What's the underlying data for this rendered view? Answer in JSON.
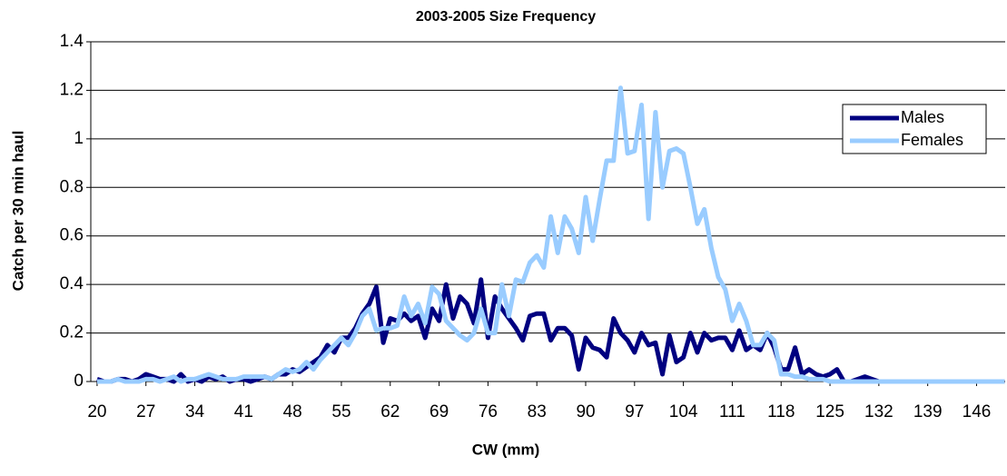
{
  "chart_data": {
    "type": "line",
    "title": "2003-2005 Size Frequency",
    "x_label": "CW (mm)",
    "y_label": "Catch per 30 min haul",
    "x": [
      20,
      21,
      22,
      23,
      24,
      25,
      26,
      27,
      28,
      29,
      30,
      31,
      32,
      33,
      34,
      35,
      36,
      37,
      38,
      39,
      40,
      41,
      42,
      43,
      44,
      45,
      46,
      47,
      48,
      49,
      50,
      51,
      52,
      53,
      54,
      55,
      56,
      57,
      58,
      59,
      60,
      61,
      62,
      63,
      64,
      65,
      66,
      67,
      68,
      69,
      70,
      71,
      72,
      73,
      74,
      75,
      76,
      77,
      78,
      79,
      80,
      81,
      82,
      83,
      84,
      85,
      86,
      87,
      88,
      89,
      90,
      91,
      92,
      93,
      94,
      95,
      96,
      97,
      98,
      99,
      100,
      101,
      102,
      103,
      104,
      105,
      106,
      107,
      108,
      109,
      110,
      111,
      112,
      113,
      114,
      115,
      116,
      117,
      118,
      119,
      120,
      121,
      122,
      123,
      124,
      125,
      126,
      127,
      128,
      129,
      130,
      131,
      132,
      133,
      134,
      135,
      136,
      137,
      138,
      139,
      140,
      141,
      142,
      143,
      144,
      145,
      146,
      147,
      148,
      149,
      150
    ],
    "series": [
      {
        "name": "Males",
        "color": "#000080",
        "values": [
          0.01,
          0,
          0,
          0.01,
          0.01,
          0,
          0.01,
          0.03,
          0.02,
          0.01,
          0.01,
          0,
          0.03,
          0,
          0.01,
          0,
          0.02,
          0.01,
          0.02,
          0,
          0.01,
          0.01,
          0,
          0.01,
          0.02,
          0.01,
          0.03,
          0.03,
          0.05,
          0.04,
          0.06,
          0.08,
          0.1,
          0.15,
          0.12,
          0.18,
          0.18,
          0.22,
          0.28,
          0.32,
          0.39,
          0.16,
          0.26,
          0.25,
          0.28,
          0.25,
          0.27,
          0.18,
          0.3,
          0.25,
          0.4,
          0.26,
          0.35,
          0.32,
          0.24,
          0.42,
          0.18,
          0.35,
          0.3,
          0.26,
          0.22,
          0.17,
          0.27,
          0.28,
          0.28,
          0.17,
          0.22,
          0.22,
          0.19,
          0.05,
          0.18,
          0.14,
          0.13,
          0.1,
          0.26,
          0.2,
          0.17,
          0.12,
          0.2,
          0.15,
          0.16,
          0.03,
          0.19,
          0.08,
          0.1,
          0.2,
          0.12,
          0.2,
          0.17,
          0.18,
          0.18,
          0.13,
          0.21,
          0.13,
          0.15,
          0.13,
          0.2,
          0.14,
          0.05,
          0.05,
          0.14,
          0.03,
          0.05,
          0.03,
          0.02,
          0.03,
          0.05,
          0,
          0,
          0.01,
          0.02,
          0.01,
          0,
          0,
          0,
          0,
          0,
          0,
          0,
          0,
          0,
          0,
          0,
          0,
          0,
          0,
          0,
          0,
          0,
          0,
          0
        ]
      },
      {
        "name": "Females",
        "color": "#99ccff",
        "values": [
          0,
          0,
          0,
          0.01,
          0,
          0,
          0,
          0.01,
          0.01,
          0,
          0.01,
          0.02,
          0,
          0.01,
          0.01,
          0.02,
          0.03,
          0.02,
          0.01,
          0.01,
          0.01,
          0.02,
          0.02,
          0.02,
          0.02,
          0.01,
          0.03,
          0.05,
          0.04,
          0.05,
          0.08,
          0.05,
          0.09,
          0.12,
          0.15,
          0.18,
          0.15,
          0.2,
          0.27,
          0.3,
          0.21,
          0.22,
          0.22,
          0.23,
          0.35,
          0.27,
          0.32,
          0.24,
          0.39,
          0.36,
          0.25,
          0.22,
          0.19,
          0.17,
          0.2,
          0.3,
          0.2,
          0.2,
          0.4,
          0.27,
          0.42,
          0.41,
          0.49,
          0.52,
          0.47,
          0.68,
          0.53,
          0.68,
          0.63,
          0.53,
          0.76,
          0.58,
          0.75,
          0.91,
          0.91,
          1.21,
          0.94,
          0.95,
          1.14,
          0.67,
          1.11,
          0.8,
          0.95,
          0.96,
          0.94,
          0.8,
          0.65,
          0.71,
          0.55,
          0.43,
          0.38,
          0.25,
          0.32,
          0.25,
          0.15,
          0.15,
          0.2,
          0.17,
          0.03,
          0.03,
          0.02,
          0.02,
          0.01,
          0.01,
          0.01,
          0,
          0,
          0,
          0,
          0,
          0,
          0,
          0,
          0,
          0,
          0,
          0,
          0,
          0,
          0,
          0,
          0,
          0,
          0,
          0,
          0,
          0,
          0,
          0,
          0,
          0
        ]
      }
    ],
    "xlim": [
      19.1,
      150.1
    ],
    "xticks": [
      20,
      27,
      34,
      41,
      48,
      55,
      62,
      69,
      76,
      83,
      90,
      97,
      104,
      111,
      118,
      125,
      132,
      139,
      146
    ],
    "ylim": [
      0,
      1.4
    ],
    "yticks": [
      0,
      0.2,
      0.4,
      0.6,
      0.8,
      1,
      1.2,
      1.4
    ],
    "grid": true,
    "legend": "upper right"
  }
}
